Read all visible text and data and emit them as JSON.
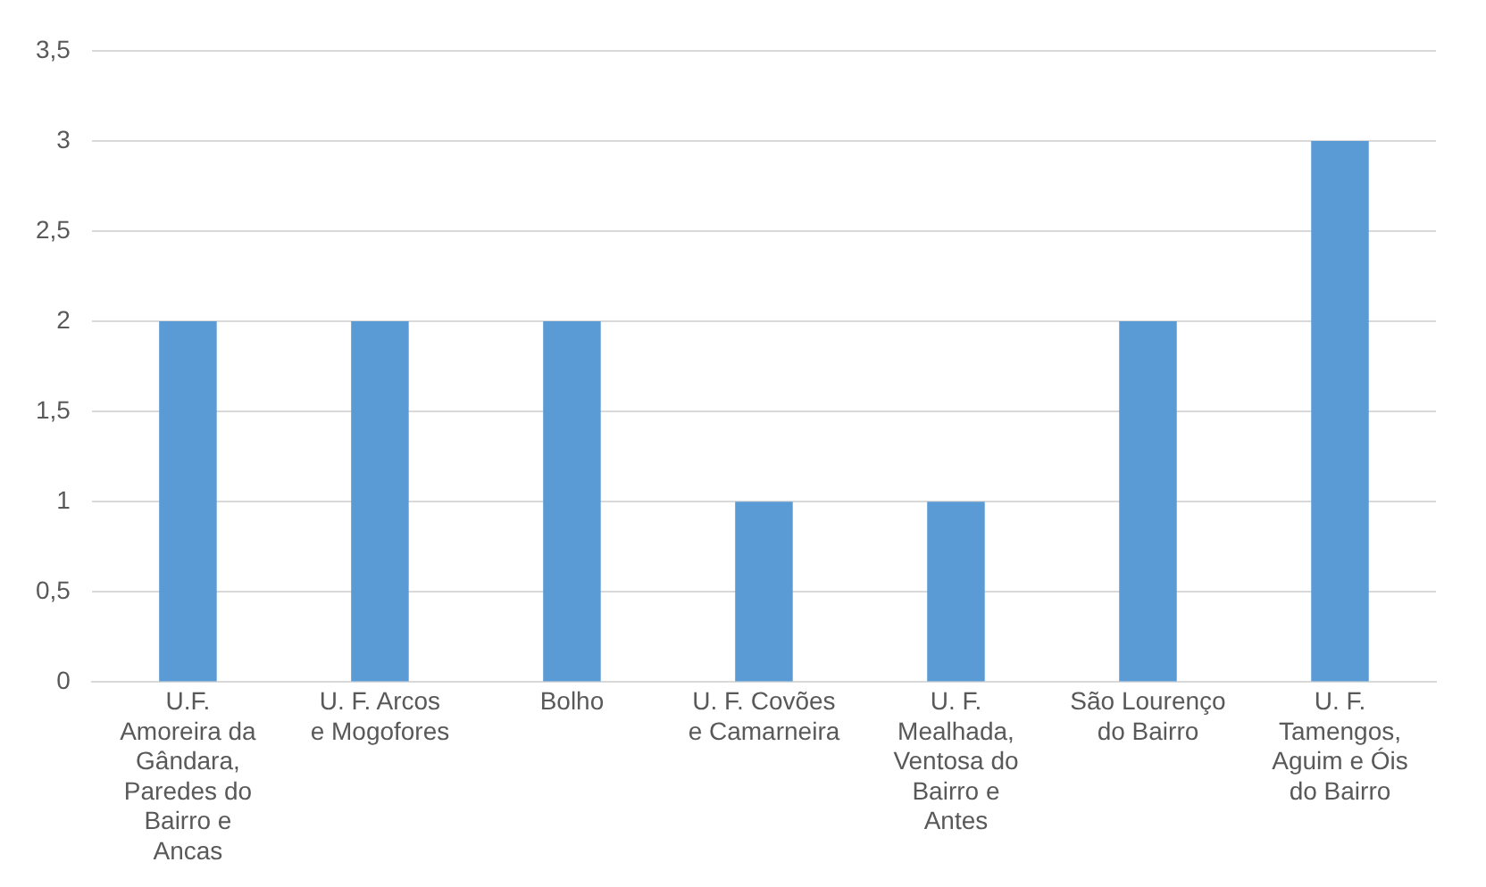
{
  "chart_data": {
    "type": "bar",
    "categories": [
      "U.F. Amoreira da Gândara, Paredes do Bairro e Ancas",
      "U. F. Arcos e Mogofores",
      "Bolho",
      "U. F. Covões e Camarneira",
      "U. F. Mealhada, Ventosa do Bairro e Antes",
      "São Lourenço do Bairro",
      "U. F. Tamengos, Aguim e Óis do Bairro"
    ],
    "values": [
      2,
      2,
      2,
      1,
      1,
      2,
      3
    ],
    "color": "#5b9bd5",
    "ylim": [
      0,
      3.5
    ],
    "yticks": [
      0,
      {
        "value": 0.5,
        "label": "0,5"
      },
      1,
      {
        "value": 1.5,
        "label": "1,5"
      },
      2,
      {
        "value": 2.5,
        "label": "2,5"
      },
      3,
      {
        "value": 3.5,
        "label": "3,5"
      }
    ],
    "grid": "y",
    "legend": false
  }
}
